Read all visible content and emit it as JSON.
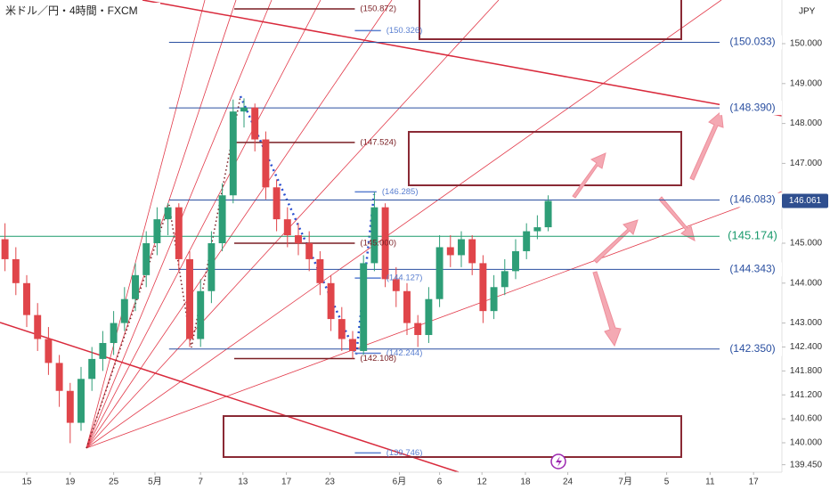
{
  "chart_data": {
    "type": "candlestick",
    "title": "米ドル／円・4時間・FXCM",
    "currency": "JPY",
    "up_color": "#2e9e77",
    "down_color": "#e0454a",
    "x": [
      -2,
      -1,
      0,
      1,
      2,
      3,
      4,
      5,
      6,
      7,
      8,
      9,
      10,
      11,
      12,
      13,
      14,
      15,
      16,
      17,
      18,
      19,
      20,
      21,
      22,
      23,
      24,
      25,
      26,
      27,
      28,
      29,
      30,
      31,
      32,
      33,
      34,
      35,
      36,
      37,
      38,
      39,
      40,
      41,
      42,
      43,
      44,
      45,
      46,
      47,
      48
    ],
    "open": [
      145.1,
      144.6,
      144.0,
      143.2,
      142.6,
      142.0,
      141.3,
      140.5,
      141.6,
      142.1,
      142.5,
      143.0,
      143.6,
      144.2,
      145.0,
      145.6,
      145.9,
      144.6,
      142.6,
      143.8,
      145.0,
      146.2,
      148.3,
      148.4,
      147.6,
      146.4,
      145.6,
      145.2,
      145.0,
      144.6,
      144.0,
      143.1,
      142.6,
      142.3,
      144.5,
      145.9,
      144.1,
      143.8,
      143.0,
      142.7,
      143.6,
      144.9,
      144.7,
      145.1,
      144.5,
      143.3,
      143.9,
      144.3,
      144.8,
      145.3,
      145.4
    ],
    "high": [
      145.5,
      144.9,
      144.2,
      143.5,
      142.9,
      142.2,
      141.5,
      141.9,
      142.4,
      142.8,
      143.3,
      143.9,
      144.5,
      145.3,
      145.9,
      146.0,
      146.0,
      144.8,
      144.1,
      145.3,
      146.5,
      148.6,
      148.63,
      148.5,
      147.8,
      146.6,
      145.9,
      145.5,
      145.3,
      144.8,
      144.2,
      143.4,
      142.8,
      144.7,
      146.28,
      146.0,
      144.4,
      144.0,
      143.2,
      143.9,
      145.2,
      145.2,
      145.3,
      145.2,
      144.7,
      144.2,
      144.6,
      145.1,
      145.5,
      145.7,
      146.2
    ],
    "low": [
      144.3,
      143.7,
      142.9,
      142.3,
      141.7,
      140.9,
      139.99,
      140.3,
      141.3,
      141.8,
      142.2,
      142.8,
      143.3,
      143.9,
      144.7,
      145.2,
      144.3,
      142.4,
      142.4,
      143.5,
      144.8,
      146.0,
      147.9,
      147.3,
      146.1,
      145.3,
      144.9,
      144.7,
      144.3,
      143.7,
      142.8,
      142.3,
      142.11,
      142.2,
      144.3,
      143.9,
      143.4,
      142.7,
      142.4,
      142.5,
      143.4,
      144.4,
      144.4,
      144.2,
      143.0,
      143.1,
      143.7,
      144.1,
      144.6,
      145.1,
      145.3
    ],
    "close": [
      144.6,
      144.0,
      143.2,
      142.6,
      142.0,
      141.3,
      140.5,
      141.6,
      142.1,
      142.5,
      143.0,
      143.6,
      144.2,
      145.0,
      145.6,
      145.9,
      144.6,
      142.6,
      143.8,
      145.0,
      146.2,
      148.3,
      148.4,
      147.6,
      146.4,
      145.6,
      145.2,
      145.0,
      144.6,
      144.0,
      143.1,
      142.6,
      142.3,
      144.5,
      145.9,
      144.1,
      143.8,
      143.0,
      142.7,
      143.6,
      144.9,
      144.7,
      145.1,
      144.5,
      143.3,
      143.9,
      144.3,
      144.8,
      145.3,
      145.4,
      146.06
    ],
    "xlim": [
      -2.46,
      69.51
    ],
    "xticks": [
      {
        "value": 0,
        "label": "15"
      },
      {
        "value": 4,
        "label": "19"
      },
      {
        "value": 8,
        "label": "25"
      },
      {
        "value": 11.8,
        "label": "5月"
      },
      {
        "value": 16,
        "label": "7"
      },
      {
        "value": 19.9,
        "label": "13"
      },
      {
        "value": 23.9,
        "label": "17"
      },
      {
        "value": 27.9,
        "label": "23"
      },
      {
        "value": 34.3,
        "label": "6月"
      },
      {
        "value": 38,
        "label": "6"
      },
      {
        "value": 41.9,
        "label": "12"
      },
      {
        "value": 45.9,
        "label": "18"
      },
      {
        "value": 49.8,
        "label": "24"
      },
      {
        "value": 55.1,
        "label": "7月"
      },
      {
        "value": 58.9,
        "label": "5"
      },
      {
        "value": 62.9,
        "label": "11"
      },
      {
        "value": 66.9,
        "label": "17"
      }
    ],
    "ylim": [
      139.263,
      151.094
    ],
    "yticks": [
      {
        "value": 139.45,
        "label": "139.450"
      },
      {
        "value": 140,
        "label": "140.000"
      },
      {
        "value": 140.6,
        "label": "140.600"
      },
      {
        "value": 141.2,
        "label": "141.200"
      },
      {
        "value": 141.8,
        "label": "141.800"
      },
      {
        "value": 142.4,
        "label": "142.400"
      },
      {
        "value": 143,
        "label": "143.000"
      },
      {
        "value": 144,
        "label": "144.000"
      },
      {
        "value": 145,
        "label": "145.000"
      },
      {
        "value": 146,
        "label": "146.000"
      },
      {
        "value": 147,
        "label": "147.000"
      },
      {
        "value": 148,
        "label": "148.000"
      },
      {
        "value": 149,
        "label": "149.000"
      },
      {
        "value": 150,
        "label": "150.000"
      }
    ],
    "last_price": 146.061,
    "last_price_color": "#2f4f8f",
    "levels": [
      {
        "value": 150.033,
        "label": "(150.033)",
        "color": "#2a4fa0",
        "x": [
          13.1,
          69.51
        ]
      },
      {
        "value": 148.39,
        "label": "(148.390)",
        "color": "#2a4fa0",
        "x": [
          13.1,
          69.51
        ]
      },
      {
        "value": 146.083,
        "label": "(146.083)",
        "color": "#2a4fa0",
        "x": [
          13.1,
          69.51
        ]
      },
      {
        "value": 145.174,
        "label": "(145.174)",
        "color": "#1a9a6c",
        "x": [
          -2.46,
          69.51
        ]
      },
      {
        "value": 144.343,
        "label": "(144.343)",
        "color": "#2a4fa0",
        "x": [
          13.1,
          69.51
        ]
      },
      {
        "value": 142.35,
        "label": "(142.350)",
        "color": "#2a4fa0",
        "x": [
          13.1,
          69.51
        ]
      },
      {
        "value": 150.872,
        "label": "(150.872)",
        "color": "#7a1f24",
        "x": [
          19.1,
          30.2
        ]
      },
      {
        "value": 150.326,
        "label": "(150.326)",
        "color": "#5a7fd0",
        "x": [
          30.2,
          32.6
        ]
      },
      {
        "value": 147.524,
        "label": "(147.524)",
        "color": "#7a1f24",
        "x": [
          19.1,
          30.2
        ]
      },
      {
        "value": 146.285,
        "label": "(146.285)",
        "color": "#5a7fd0",
        "x": [
          30.2,
          32.2
        ]
      },
      {
        "value": 145.0,
        "label": "(145.000)",
        "color": "#7a1f24",
        "x": [
          19.1,
          30.2
        ]
      },
      {
        "value": 144.127,
        "label": "(144.127)",
        "color": "#5a7fd0",
        "x": [
          30.2,
          32.6
        ]
      },
      {
        "value": 142.244,
        "label": "(142.244)",
        "color": "#5a7fd0",
        "x": [
          30.2,
          32.6
        ]
      },
      {
        "value": 142.108,
        "label": "(142.108)",
        "color": "#7a1f24",
        "x": [
          19.1,
          30.2
        ]
      },
      {
        "value": 139.746,
        "label": "(139.746)",
        "color": "#5a7fd0",
        "x": [
          30.2,
          32.6
        ]
      }
    ]
  }
}
